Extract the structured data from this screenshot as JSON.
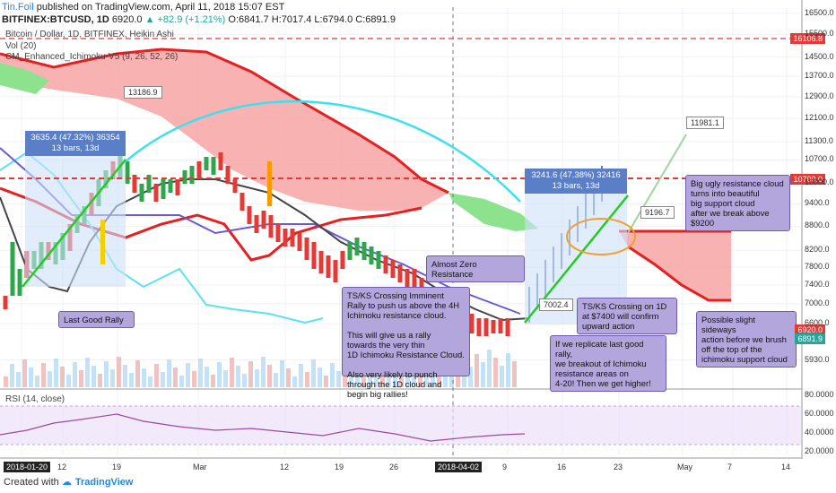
{
  "header": {
    "author": "Tin.Foil",
    "published": "published on TradingView.com, April 11, 2018 15:07 EST",
    "symbol": "BITFINEX:BTCUSD, 1D",
    "price": "6920.0",
    "change": "▲ +82.9 (+1.21%)",
    "ohlc": "O:6841.7 H:7017.4 L:6794.0 C:6891.9"
  },
  "indicators": {
    "main": "Bitcoin / Dollar, 1D, BITFINEX, Heikin Ashi",
    "vol": "Vol (20)",
    "ichimoku": "CM_Enhanced_Ichimoku-V5 (9, 26, 52, 26)",
    "rsi": "RSI (14, close)"
  },
  "chart_data": {
    "type": "candlestick",
    "yscale": "log",
    "ylim": [
      5500,
      16800
    ],
    "y_ticks": [
      "16500.0",
      "15500.0",
      "14500.0",
      "13700.0",
      "12900.0",
      "12100.0",
      "11300.0",
      "10700.0",
      "10000.0",
      "9400.0",
      "8800.0",
      "8200.0",
      "7800.0",
      "7400.0",
      "7000.0",
      "6600.0",
      "5930.0"
    ],
    "x_ticks": [
      "2018-01-20",
      "12",
      "19",
      "Mar",
      "12",
      "19",
      "26",
      "2018-04-02",
      "9",
      "16",
      "23",
      "May",
      "7",
      "14"
    ],
    "price_tags": {
      "resistance": "16106.8",
      "level": "10700.0",
      "last": "6920.0",
      "close": "6891.9"
    },
    "measure_left": {
      "text": "3635.4 (47.32%) 36354",
      "bars": "13 bars, 13d"
    },
    "measure_right": {
      "text": "3241.6 (47.38%) 32416",
      "bars": "13 bars, 13d"
    },
    "labels": {
      "cloud_top": "13186.9",
      "target": "11981.1",
      "mid": "9196.7",
      "low": "7002.4"
    },
    "rsi_ticks": [
      "80.0000",
      "60.0000",
      "40.0000",
      "20.0000"
    ]
  },
  "annotations": {
    "last_good_rally": "Last Good Rally",
    "tk_imminent": "TS/KS Crossing Imminent\nRally to push us above the 4H\nIchimoku resistance cloud.\n\nThis will give us a rally\ntowards the very thin\n1D Ichimoku Resistance Cloud.\n\nAlso very likely to punch\nthrough the 1D cloud and\nbegin big rallies!",
    "almost_zero": "Almost Zero Resistance",
    "tk_1d": "TS/KS Crossing on 1D\nat $7400 will confirm\nupward action",
    "replicate": "If we replicate last good rally,\nwe breakout of Ichimoku\nresistance areas on\n4-20!  Then we get higher!",
    "big_ugly": "Big ugly resistance cloud\nturns into beautiful\nbig support cloud\nafter we break above\n$9200",
    "sideways": "Possible slight sideways\naction before we brush\noff the top of the\nichimoku support cloud"
  },
  "footer": {
    "created": "Created with",
    "brand": "TradingView"
  }
}
